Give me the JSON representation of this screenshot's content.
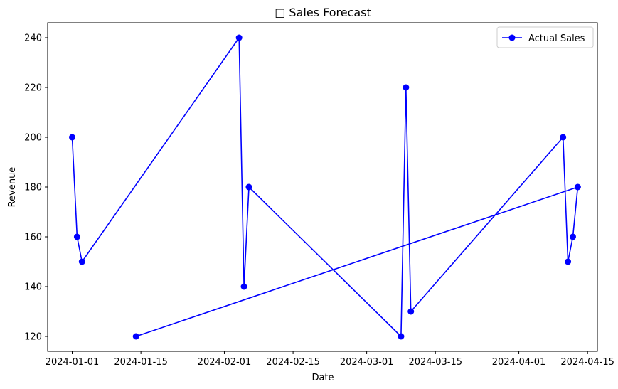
{
  "chart_data": {
    "type": "line",
    "title": "□ Sales Forecast",
    "xlabel": "Date",
    "ylabel": "Revenue",
    "x_axis_type": "date",
    "xlim": [
      "2023-12-27",
      "2024-04-17"
    ],
    "ylim": [
      114,
      246
    ],
    "xticks": [
      "2024-01-01",
      "2024-01-15",
      "2024-02-01",
      "2024-02-15",
      "2024-03-01",
      "2024-03-15",
      "2024-04-01",
      "2024-04-15"
    ],
    "yticks": [
      120,
      140,
      160,
      180,
      200,
      220,
      240
    ],
    "grid": false,
    "legend_position": "top-right",
    "series": [
      {
        "name": "Actual Sales",
        "color": "#0000ff",
        "marker": "circle",
        "x": [
          "2024-01-01",
          "2024-01-02",
          "2024-01-03",
          "2024-02-04",
          "2024-02-05",
          "2024-02-06",
          "2024-03-08",
          "2024-03-09",
          "2024-03-10",
          "2024-04-10",
          "2024-04-11",
          "2024-04-12",
          "2024-04-13",
          "2024-01-14"
        ],
        "y": [
          200,
          160,
          150,
          240,
          140,
          180,
          120,
          220,
          130,
          200,
          150,
          160,
          180,
          120
        ]
      }
    ]
  }
}
